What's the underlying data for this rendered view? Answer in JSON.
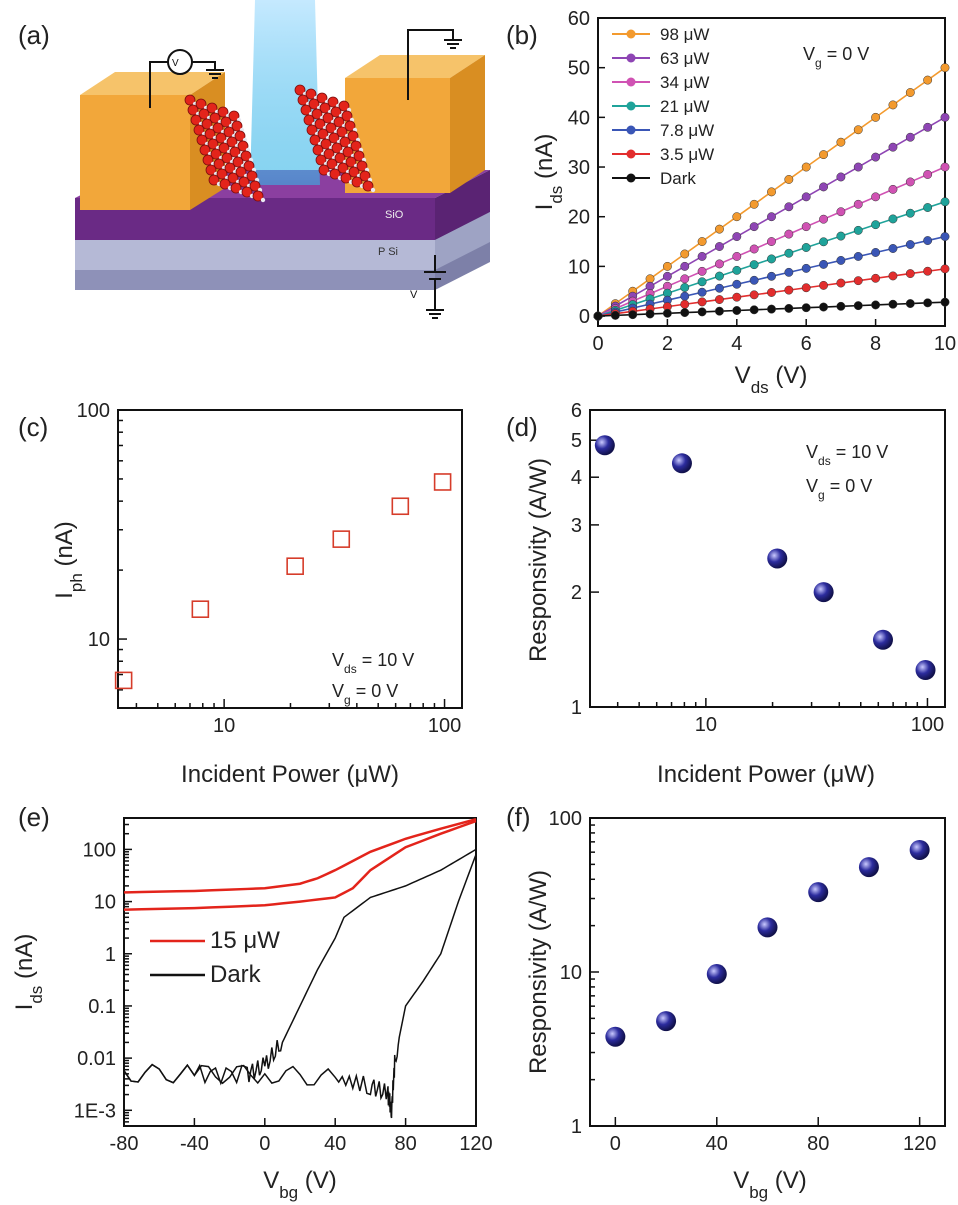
{
  "figure": {
    "panels": [
      "(a)",
      "(b)",
      "(c)",
      "(d)",
      "(e)",
      "(f)"
    ]
  },
  "device": {
    "labels": [
      "V",
      "SiO",
      "P Si",
      "V"
    ]
  },
  "colors": {
    "s98": "#f39a2e",
    "s63": "#8e45b4",
    "s34": "#d052b3",
    "s21": "#1fa39a",
    "s7_8": "#3a56b6",
    "s3_5": "#e22d2d",
    "dark": "#111111",
    "ball": "#2c2c9e",
    "square": "#d63c2a",
    "red": "#e3241b",
    "gold": "#f2a73a",
    "purple": "#6d2c8f"
  },
  "chart_data": [
    {
      "id": "b",
      "type": "line",
      "xlabel": "V",
      "xlabel_sub": "ds",
      "xlabel_unit": " (V)",
      "ylabel": "I",
      "ylabel_sub": "ds",
      "ylabel_unit": " (nA)",
      "xlim": [
        0,
        10
      ],
      "ylim": [
        -2,
        60
      ],
      "xticks": [
        0,
        2,
        4,
        6,
        8,
        10
      ],
      "yticks": [
        0,
        10,
        20,
        30,
        40,
        50,
        60
      ],
      "annotation": "V   =   0 V",
      "annotation_sub": "g",
      "legend_position": "top-left",
      "series": [
        {
          "name": "98 μW",
          "slope": 5.0,
          "color": "#f39a2e"
        },
        {
          "name": "63 μW",
          "slope": 4.0,
          "color": "#8e45b4"
        },
        {
          "name": "34 μW",
          "slope": 3.0,
          "color": "#d052b3"
        },
        {
          "name": "21 μW",
          "slope": 2.3,
          "color": "#1fa39a"
        },
        {
          "name": "7.8 μW",
          "slope": 1.6,
          "color": "#3a56b6"
        },
        {
          "name": "3.5 μW",
          "slope": 0.95,
          "color": "#e22d2d"
        },
        {
          "name": "Dark",
          "slope": 0.28,
          "color": "#111111"
        }
      ],
      "x": [
        0,
        0.5,
        1,
        1.5,
        2,
        2.5,
        3,
        3.5,
        4,
        4.5,
        5,
        5.5,
        6,
        6.5,
        7,
        7.5,
        8,
        8.5,
        9,
        9.5,
        10
      ]
    },
    {
      "id": "c",
      "type": "scatter",
      "xscale": "log",
      "yscale": "log",
      "xlabel": "Incident Power (μW)",
      "ylabel": "I",
      "ylabel_sub": "ph",
      "ylabel_unit": " (nA)",
      "xlim": [
        3.3,
        120
      ],
      "ylim": [
        5,
        100
      ],
      "xticks": [
        10,
        100
      ],
      "yticks": [
        10,
        100
      ],
      "annotation": [
        "V   = 10 V",
        "V   =   0 V"
      ],
      "annotation_subs": [
        "ds",
        "g"
      ],
      "x": [
        3.5,
        7.8,
        21,
        34,
        63,
        98
      ],
      "y": [
        6.6,
        13.5,
        20.8,
        27.3,
        38.0,
        48.5
      ]
    },
    {
      "id": "d",
      "type": "scatter",
      "xscale": "log",
      "yscale": "log",
      "xlabel": "Incident Power (μW)",
      "ylabel": "Responsivity (A/W)",
      "xlim": [
        3.0,
        120
      ],
      "ylim": [
        1,
        6
      ],
      "xticks": [
        10,
        100
      ],
      "yticks": [
        1,
        2,
        3,
        4,
        5,
        6
      ],
      "annotation": [
        "V   = 10 V",
        "V   =   0 V"
      ],
      "annotation_subs": [
        "ds",
        "g"
      ],
      "x": [
        3.5,
        7.8,
        21,
        34,
        63,
        98
      ],
      "y": [
        4.85,
        4.35,
        2.45,
        2.0,
        1.5,
        1.25
      ]
    },
    {
      "id": "e",
      "type": "line",
      "yscale": "log",
      "xlabel": "V",
      "xlabel_sub": "bg",
      "xlabel_unit": " (V)",
      "ylabel": "I",
      "ylabel_sub": "ds",
      "ylabel_unit": " (nA)",
      "xlim": [
        -80,
        120
      ],
      "ylim": [
        0.0005,
        400
      ],
      "xticks": [
        -80,
        -40,
        0,
        40,
        80,
        120
      ],
      "yticks": [
        0.001,
        0.01,
        0.1,
        1,
        10,
        100
      ],
      "ytick_labels": [
        "1E-3",
        "0.01",
        "0.1",
        "1",
        "10",
        "100"
      ],
      "legend_position": "middle-left",
      "series": [
        {
          "name": "15 μW",
          "color": "#e3241b",
          "x": [
            -80,
            -40,
            0,
            20,
            30,
            40,
            60,
            80,
            100,
            120
          ],
          "y": [
            15,
            16,
            18,
            22,
            28,
            40,
            90,
            160,
            250,
            380
          ],
          "x2": [
            -80,
            -40,
            0,
            20,
            40,
            50,
            60,
            80,
            100,
            120
          ],
          "y2": [
            7,
            7.5,
            8.5,
            10,
            12,
            18,
            40,
            110,
            200,
            350
          ]
        },
        {
          "name": "Dark",
          "color": "#111111",
          "x": [
            -80,
            -40,
            -10,
            0,
            10,
            20,
            30,
            40,
            45,
            60,
            80,
            100,
            120
          ],
          "y": [
            0.005,
            0.005,
            0.005,
            0.007,
            0.02,
            0.1,
            0.5,
            2,
            5,
            12,
            20,
            40,
            100
          ],
          "x2": [
            -80,
            -40,
            0,
            40,
            60,
            70,
            72,
            74,
            80,
            90,
            100,
            110,
            120
          ],
          "y2": [
            0.005,
            0.005,
            0.005,
            0.004,
            0.003,
            0.002,
            0.001,
            0.01,
            0.1,
            0.3,
            1,
            10,
            80
          ]
        }
      ]
    },
    {
      "id": "f",
      "type": "scatter",
      "yscale": "log",
      "xlabel": "V",
      "xlabel_sub": "bg",
      "xlabel_unit": " (V)",
      "ylabel": "Responsivity (A/W)",
      "xlim": [
        -10,
        130
      ],
      "ylim": [
        1,
        100
      ],
      "xticks": [
        0,
        40,
        80,
        120
      ],
      "yticks": [
        1,
        10,
        100
      ],
      "x": [
        0,
        20,
        40,
        60,
        80,
        100,
        120
      ],
      "y": [
        3.8,
        4.8,
        9.7,
        19.5,
        33,
        48,
        62
      ]
    }
  ]
}
